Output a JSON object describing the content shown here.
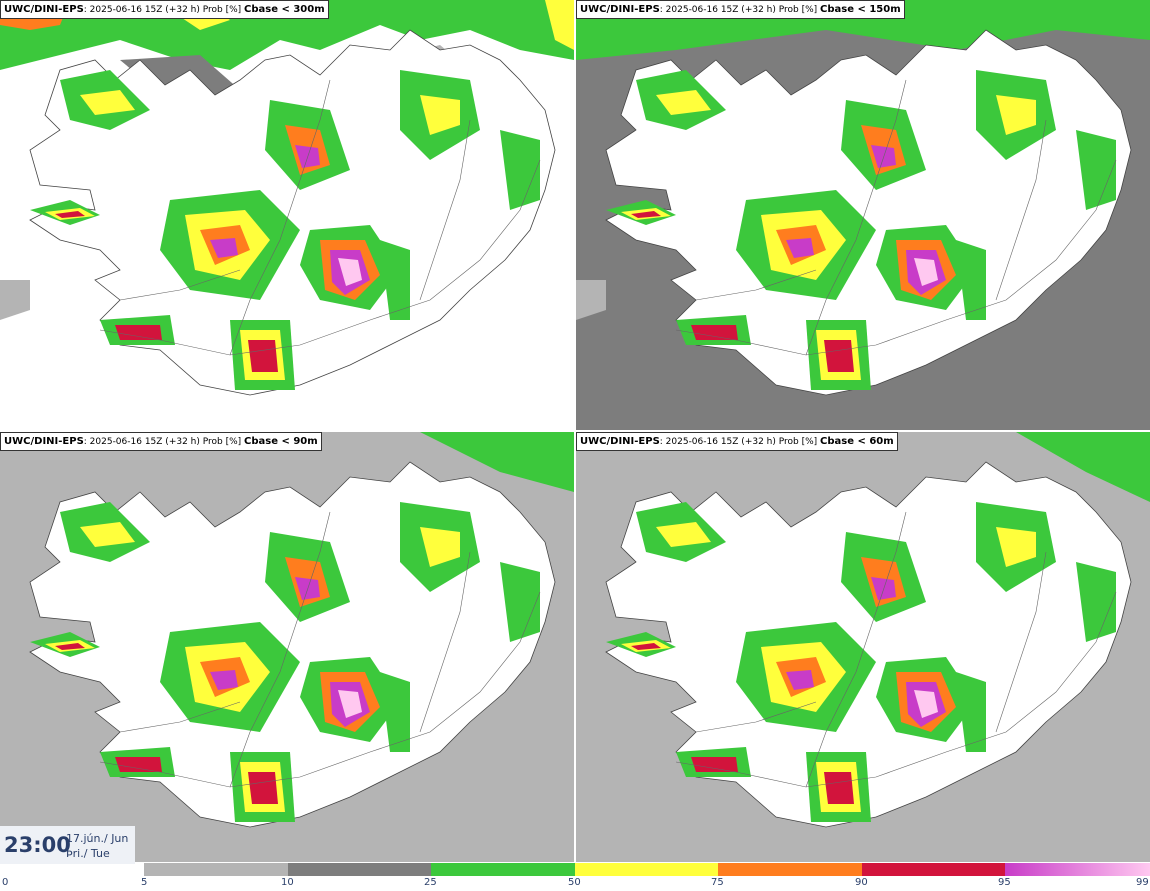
{
  "panels": [
    {
      "model": "UWC/DINI-EPS",
      "meta": ": 2025-06-16 15Z (+32 h) Prob [%] ",
      "param": "Cbase < 300m"
    },
    {
      "model": "UWC/DINI-EPS",
      "meta": ": 2025-06-16 15Z (+32 h) Prob [%] ",
      "param": "Cbase < 150m"
    },
    {
      "model": "UWC/DINI-EPS",
      "meta": ": 2025-06-16 15Z (+32 h) Prob [%] ",
      "param": "Cbase < 90m"
    },
    {
      "model": "UWC/DINI-EPS",
      "meta": ": 2025-06-16 15Z (+32 h) Prob [%] ",
      "param": "Cbase < 60m"
    }
  ],
  "valid_time": {
    "time": "23:00",
    "date_line1": "17.jún./ Jun",
    "date_line2": "Þri./ Tue"
  },
  "colorbar": {
    "ticks": [
      "0",
      "5",
      "10",
      "25",
      "50",
      "75",
      "90",
      "95",
      "99"
    ],
    "colors": {
      "c5": "#b4b4b4",
      "c10": "#7d7d7d",
      "c25": "#3cc83c",
      "c50": "#ffff3c",
      "c75": "#ff7d1e",
      "c90": "#d2143c",
      "c95": "#c83cc8",
      "c99": "#ffc8f0"
    }
  }
}
